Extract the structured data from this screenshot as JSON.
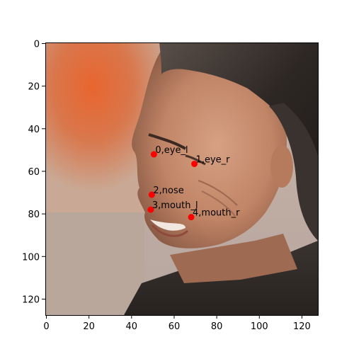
{
  "image": {
    "x_ticks": [
      "0",
      "20",
      "40",
      "60",
      "80",
      "100",
      "120"
    ],
    "y_ticks": [
      "0",
      "20",
      "40",
      "60",
      "80",
      "100",
      "120"
    ],
    "x_range": [
      -0.5,
      127.5
    ],
    "y_range": [
      -0.5,
      127.5
    ],
    "y_inverted": true,
    "landmarks": [
      {
        "label": "0,eye_l",
        "x": 50.5,
        "y": 52
      },
      {
        "label": "1,eye_r",
        "x": 69.5,
        "y": 56.5
      },
      {
        "label": "2,nose",
        "x": 49.5,
        "y": 71
      },
      {
        "label": "3,mouth_l",
        "x": 49,
        "y": 78
      },
      {
        "label": "4,mouth_r",
        "x": 68,
        "y": 81.5
      }
    ],
    "marker_color": "#ff0000",
    "photo_description": "photo of a smiling man's face in profile, dark hair with grey, orange and grey blurred background"
  }
}
